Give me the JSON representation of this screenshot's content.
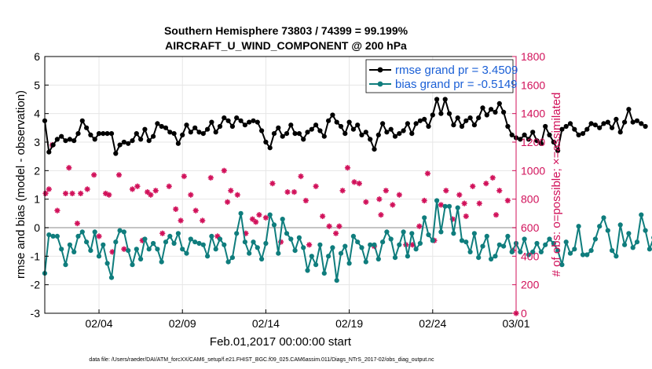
{
  "chart_data": {
    "type": "line",
    "title": "Southern Hemisphere 73803 / 74399 = 99.199%",
    "subtitle": "AIRCRAFT_U_WIND_COMPONENT @ 200 hPa",
    "xlabel": "Feb.01,2017 00:00:00 start",
    "ylabel": "rmse and bias (model - observation)",
    "y2label": "# of obs: o=possible; ×=assimilated",
    "footnote": "data file: /Users/raeder/DAI/ATM_forcXX/CAM6_setup/f.e21.FHIST_BGC.f09_025.CAM6assim.011/Diags_NTrS_2017-02/obs_diag_output.nc",
    "xlim": [
      0.75,
      29
    ],
    "ylim": [
      -3,
      6
    ],
    "y2lim": [
      0,
      1800
    ],
    "x_ticks": [
      4,
      9,
      14,
      19,
      24,
      29
    ],
    "x_tick_labels": [
      "02/04",
      "02/09",
      "02/14",
      "02/19",
      "02/24",
      "03/01"
    ],
    "y_ticks": [
      -3,
      -2,
      -1,
      0,
      1,
      2,
      3,
      4,
      5,
      6
    ],
    "y_tick_labels": [
      "-3",
      "-2",
      "-1",
      "0",
      "1",
      "2",
      "3",
      "4",
      "5",
      "6"
    ],
    "y2_ticks": [
      0,
      200,
      400,
      600,
      800,
      1000,
      1200,
      1400,
      1600,
      1800
    ],
    "y2_tick_labels": [
      "0",
      "200",
      "400",
      "600",
      "800",
      "1000",
      "1200",
      "1400",
      "1600",
      "1800"
    ],
    "legend_position": "top-right",
    "colors": {
      "rmse": "#000000",
      "bias": "#0f7d7d",
      "obs": "#d1115a",
      "zero_line": "#b0b0b0",
      "legend_text": "#1a5fd6"
    },
    "series": [
      {
        "name": "rmse",
        "legend": "rmse grand pr = 3.4509",
        "x0": 0.75,
        "dx": 0.25,
        "values": [
          3.75,
          2.65,
          2.9,
          3.1,
          3.2,
          3.05,
          3.1,
          3.05,
          3.3,
          3.75,
          3.5,
          3.25,
          3.1,
          3.3,
          3.3,
          3.3,
          3.3,
          2.6,
          2.9,
          3.0,
          2.95,
          3.05,
          3.3,
          3.1,
          3.45,
          3.05,
          3.2,
          3.65,
          3.55,
          3.5,
          3.35,
          3.3,
          2.95,
          3.25,
          3.6,
          3.35,
          3.5,
          3.35,
          3.3,
          3.45,
          3.7,
          3.35,
          3.55,
          3.85,
          3.75,
          3.55,
          3.85,
          3.75,
          3.6,
          3.7,
          3.75,
          3.7,
          3.4,
          3.0,
          2.8,
          3.3,
          3.5,
          3.2,
          3.3,
          3.6,
          3.3,
          3.3,
          3.1,
          3.35,
          3.45,
          3.6,
          3.4,
          3.2,
          3.75,
          3.95,
          3.7,
          3.55,
          3.3,
          3.7,
          3.45,
          3.6,
          3.25,
          3.35,
          3.1,
          2.75,
          3.25,
          3.65,
          3.35,
          3.45,
          3.2,
          3.3,
          3.4,
          3.65,
          3.3,
          3.65,
          3.75,
          3.8,
          3.55,
          3.95,
          4.5,
          4.0,
          4.5,
          4.0,
          3.6,
          3.85,
          3.55,
          3.75,
          3.85,
          3.6,
          3.85,
          4.2,
          3.95,
          4.15,
          4.05,
          4.35,
          4.05,
          3.55,
          3.25,
          3.15,
          3.1,
          3.25,
          3.1,
          3.35,
          3.05,
          2.95,
          3.55,
          3.25,
          3.0,
          2.7,
          3.45,
          3.55,
          3.65,
          3.45,
          3.25,
          3.3,
          3.45,
          3.65,
          3.6,
          3.5,
          3.65,
          3.7,
          3.5,
          3.8,
          3.35,
          3.7,
          4.15,
          3.7,
          3.75,
          3.65,
          3.55
        ]
      },
      {
        "name": "bias",
        "legend": "bias grand pr = -0.5149",
        "x0": 0.75,
        "dx": 0.25,
        "values": [
          -1.6,
          -0.25,
          -0.3,
          -0.3,
          -0.75,
          -1.3,
          -0.6,
          -0.85,
          -0.3,
          -0.15,
          -0.5,
          -0.8,
          -0.15,
          -1.0,
          -0.6,
          -1.25,
          -1.75,
          -0.5,
          -0.1,
          -0.15,
          -0.8,
          -1.3,
          -0.75,
          -1.1,
          -0.4,
          -0.75,
          -0.55,
          -0.75,
          -1.2,
          -0.5,
          -0.3,
          -0.55,
          -0.2,
          -0.75,
          -0.9,
          -0.4,
          -0.5,
          -0.55,
          -0.6,
          -1.0,
          -0.3,
          -0.75,
          -0.4,
          -0.6,
          -1.2,
          -1.05,
          -0.2,
          0.5,
          -0.5,
          -0.9,
          -0.5,
          -0.7,
          -1.1,
          -0.55,
          0.45,
          0.1,
          -0.9,
          0.3,
          -0.2,
          -0.4,
          -0.8,
          -0.35,
          -0.7,
          -1.5,
          -1.0,
          -1.3,
          -0.6,
          -1.6,
          -1.0,
          -0.7,
          -1.85,
          -0.9,
          -0.65,
          -1.25,
          -0.3,
          -0.5,
          -0.7,
          -1.2,
          -0.6,
          -0.6,
          -1.1,
          -0.5,
          -0.15,
          -0.4,
          -1.05,
          -0.6,
          -0.15,
          -1.0,
          -0.2,
          -0.75,
          -0.55,
          0.35,
          -0.25,
          -0.45,
          0.95,
          -0.15,
          0.75,
          0.75,
          -0.2,
          0.7,
          -0.45,
          -0.5,
          -0.85,
          -0.2,
          -1.05,
          -0.65,
          -0.3,
          -1.1,
          -1.0,
          -0.6,
          -0.65,
          -0.3,
          -0.85,
          -0.55,
          -0.85,
          -0.4,
          -0.95,
          -0.85,
          -0.55,
          -0.85,
          -0.6,
          -0.4,
          -0.55,
          -0.8,
          -1.3,
          -0.5,
          -0.9,
          -0.75,
          0.05,
          -0.95,
          -0.95,
          -0.8,
          -0.4,
          0.05,
          0.35,
          -0.1,
          -0.8,
          -1.0,
          0.1,
          -0.6,
          -0.2,
          -0.7,
          -0.5,
          0.45,
          -0.1,
          -0.75,
          -0.35
        ]
      }
    ],
    "obs_counts": {
      "name": "# of obs possible / assimilated",
      "x": [
        0.8,
        1.0,
        1.2,
        2.0,
        2.4,
        2.7,
        3.3,
        3.7,
        4.0,
        4.4,
        4.8,
        5.2,
        5.5,
        6.0,
        6.3,
        6.6,
        7.1,
        7.4,
        7.8,
        8.2,
        8.6,
        9.1,
        9.5,
        9.8,
        10.2,
        10.7,
        11.1,
        11.5,
        11.9,
        12.3,
        12.8,
        13.2,
        13.6,
        14.0,
        14.4,
        14.9,
        15.3,
        15.7,
        16.1,
        16.6,
        17.0,
        17.4,
        17.8,
        18.2,
        18.6,
        18.9,
        19.3,
        19.6,
        20.0,
        20.5,
        20.9,
        21.2,
        21.6,
        22.0,
        22.4,
        22.8,
        23.2,
        23.7,
        24.1,
        24.5,
        24.8,
        25.2,
        25.6,
        26.0,
        26.4,
        26.8,
        27.2,
        27.6,
        28.0,
        28.5,
        28.8,
        1.5,
        2.2,
        2.9,
        4.6,
        6.9,
        8.9,
        11.7,
        13.4,
        16.4,
        18.4,
        20.8,
        23.5,
        25.9,
        27.8,
        29.0
      ],
      "values": [
        840,
        870,
        1180,
        840,
        840,
        630,
        870,
        970,
        540,
        840,
        430,
        970,
        450,
        870,
        890,
        510,
        830,
        860,
        560,
        890,
        730,
        960,
        830,
        720,
        650,
        950,
        540,
        1000,
        860,
        830,
        560,
        660,
        690,
        670,
        910,
        500,
        850,
        850,
        960,
        480,
        890,
        680,
        610,
        560,
        860,
        1020,
        920,
        910,
        780,
        470,
        690,
        860,
        760,
        830,
        480,
        480,
        610,
        980,
        510,
        760,
        860,
        660,
        830,
        680,
        890,
        770,
        910,
        950,
        860,
        790,
        440,
        720,
        1020,
        840,
        830,
        850,
        650,
        780,
        640,
        790,
        610,
        800,
        790,
        770,
        690,
        0
      ]
    }
  }
}
